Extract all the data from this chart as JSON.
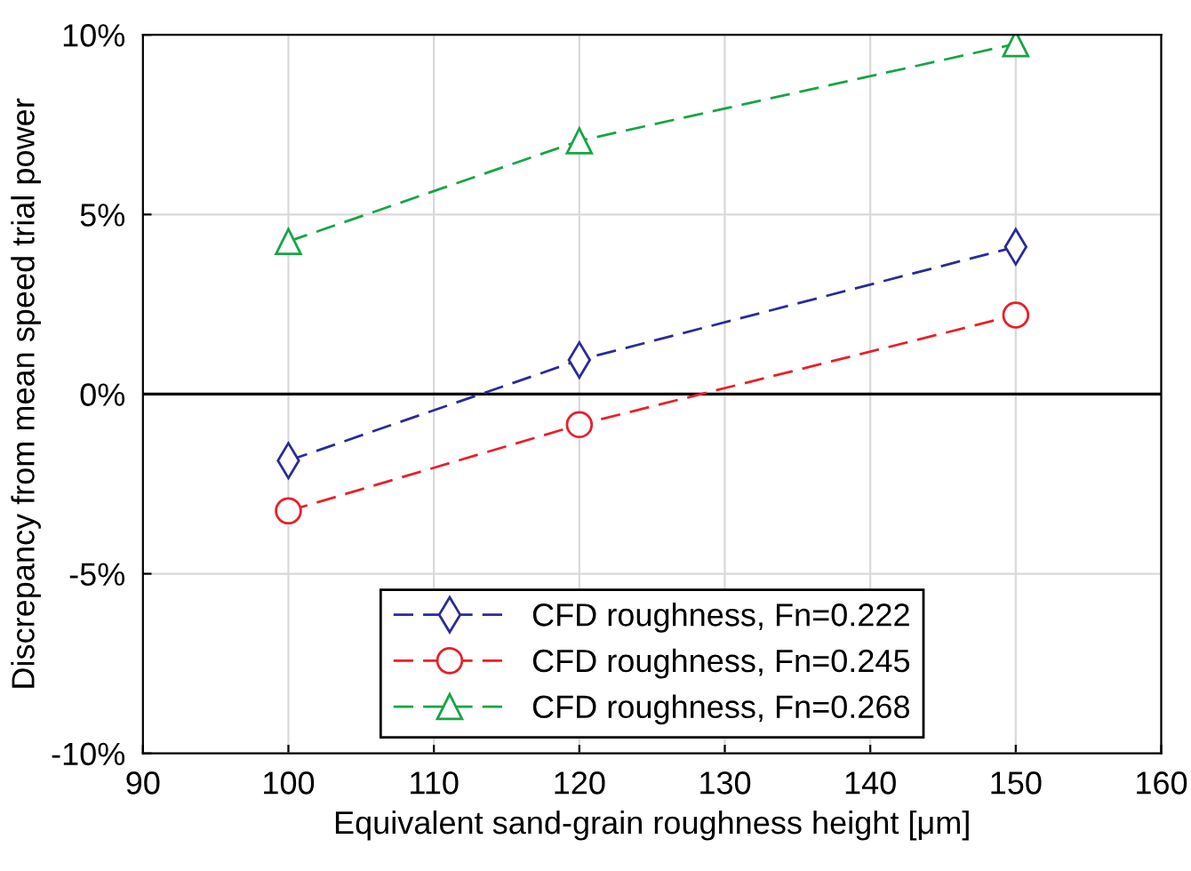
{
  "chart_data": {
    "type": "line",
    "xlabel": "Equivalent sand-grain roughness height [μm]",
    "ylabel": "Discrepancy from mean speed trial power",
    "x": [
      100,
      120,
      150
    ],
    "series": [
      {
        "name": "CFD roughness, Fn=0.222",
        "color": "#2b2b9a",
        "marker": "diamond",
        "values": [
          -1.85,
          0.95,
          4.1
        ]
      },
      {
        "name": "CFD roughness, Fn=0.245",
        "color": "#e8202a",
        "marker": "circle",
        "values": [
          -3.25,
          -0.85,
          2.2
        ]
      },
      {
        "name": "CFD roughness, Fn=0.268",
        "color": "#17a545",
        "marker": "triangle",
        "values": [
          4.25,
          7.05,
          9.75
        ]
      }
    ],
    "line_style": "dashed",
    "xlim": [
      90,
      160
    ],
    "xticks": [
      90,
      100,
      110,
      120,
      130,
      140,
      150,
      160
    ],
    "ylim": [
      -10,
      10
    ],
    "yticks": [
      {
        "value": -10,
        "label": "-10%"
      },
      {
        "value": -5,
        "label": "-5%"
      },
      {
        "value": 0,
        "label": "0%"
      },
      {
        "value": 5,
        "label": "5%"
      },
      {
        "value": 10,
        "label": "10%"
      }
    ],
    "ref_lines": [
      {
        "axis": "y",
        "value": 0,
        "color": "#000000",
        "line_style": "solid"
      }
    ],
    "grid": true,
    "legend": "bottom"
  }
}
